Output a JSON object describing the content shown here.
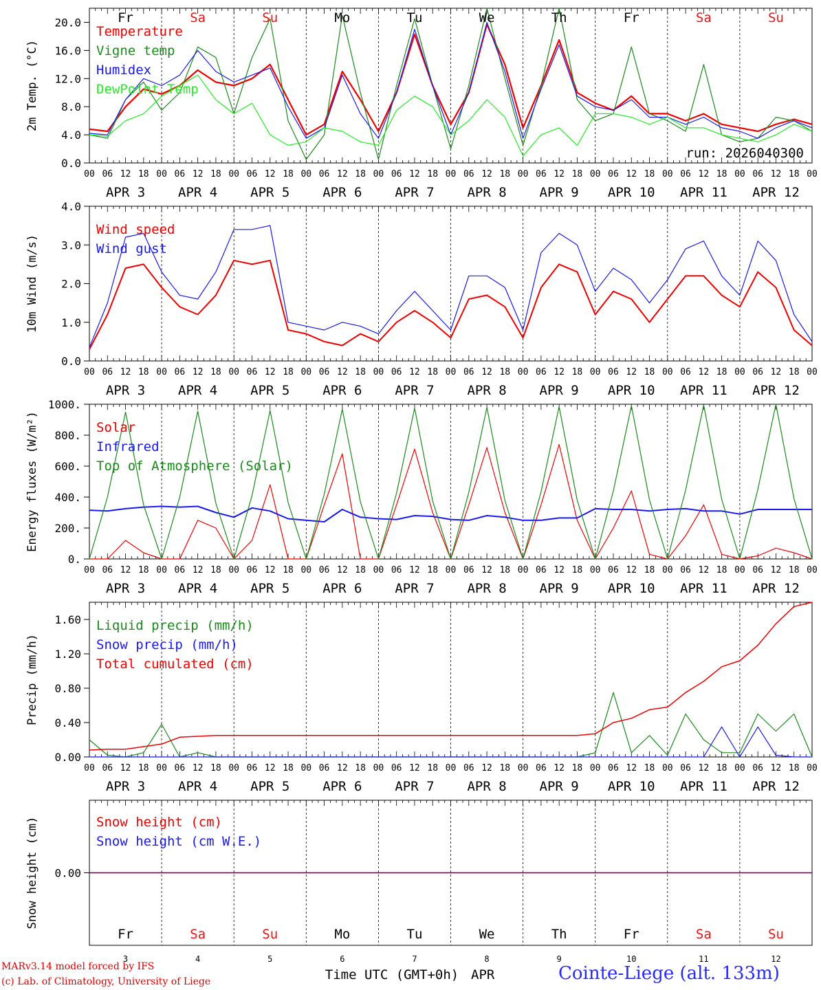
{
  "chart_data": {
    "type": "line",
    "station": "Cointe-Liege (alt. 133m)",
    "run_label": "run: 2026040300",
    "x_axis_title": "Time UTC (GMT+0h)",
    "x_month": "APR",
    "hour_ticks": [
      "00",
      "06",
      "12",
      "18"
    ],
    "final_tick": "00",
    "days": [
      {
        "num": "3",
        "label": "Fr",
        "weekend": false
      },
      {
        "num": "4",
        "label": "Sa",
        "weekend": true
      },
      {
        "num": "5",
        "label": "Su",
        "weekend": true
      },
      {
        "num": "6",
        "label": "Mo",
        "weekend": false
      },
      {
        "num": "7",
        "label": "Tu",
        "weekend": false
      },
      {
        "num": "8",
        "label": "We",
        "weekend": false
      },
      {
        "num": "9",
        "label": "Th",
        "weekend": false
      },
      {
        "num": "10",
        "label": "Fr",
        "weekend": false
      },
      {
        "num": "11",
        "label": "Sa",
        "weekend": true
      },
      {
        "num": "12",
        "label": "Su",
        "weekend": true
      }
    ],
    "x_hours": [
      0,
      6,
      12,
      18,
      24,
      30,
      36,
      42,
      48,
      54,
      60,
      66,
      72,
      78,
      84,
      90,
      96,
      102,
      108,
      114,
      120,
      126,
      132,
      138,
      144,
      150,
      156,
      162,
      168,
      174,
      180,
      186,
      192,
      198,
      204,
      210,
      216,
      222,
      228,
      234,
      240
    ],
    "panels": [
      {
        "ylabel": "2m Temp. (°C)",
        "ylim": [
          0,
          22
        ],
        "yticks": [
          "0.0",
          "4.0",
          "8.0",
          "12.0",
          "16.0",
          "20.0"
        ],
        "series": [
          {
            "name": "Temperature",
            "color": "#ee0000",
            "width": 2.2,
            "values": [
              4.8,
              4.5,
              8.0,
              10.5,
              9.8,
              11.0,
              13.2,
              11.5,
              11.0,
              12.0,
              14.0,
              9.0,
              4.0,
              5.5,
              13.0,
              9.0,
              4.5,
              10.0,
              18.3,
              11.0,
              5.5,
              10.0,
              19.7,
              14.0,
              5.0,
              11.0,
              17.5,
              10.0,
              8.5,
              7.5,
              9.5,
              7.0,
              7.0,
              6.0,
              7.0,
              5.5,
              5.0,
              4.5,
              5.5,
              6.2,
              5.5
            ]
          },
          {
            "name": "Vigne temp",
            "color": "#1a8a1a",
            "width": 1.2,
            "values": [
              4.0,
              3.5,
              9.0,
              11.5,
              7.5,
              10.0,
              16.5,
              15.0,
              7.0,
              15.0,
              20.5,
              6.0,
              0.5,
              4.0,
              21.0,
              10.0,
              0.5,
              11.0,
              20.5,
              11.0,
              2.0,
              11.0,
              22.0,
              12.0,
              2.5,
              11.0,
              22.0,
              9.0,
              6.0,
              7.0,
              16.5,
              7.0,
              6.0,
              4.5,
              14.0,
              4.0,
              3.0,
              3.5,
              6.5,
              6.0,
              4.5
            ]
          },
          {
            "name": "Humidex",
            "color": "#1818ee",
            "width": 1.2,
            "values": [
              4.2,
              4.0,
              9.0,
              12.0,
              11.0,
              12.5,
              16.0,
              13.0,
              11.5,
              12.5,
              13.5,
              8.0,
              3.5,
              5.0,
              12.5,
              7.0,
              3.5,
              10.0,
              19.0,
              11.0,
              4.0,
              10.0,
              20.0,
              13.0,
              3.5,
              10.5,
              16.8,
              9.5,
              8.0,
              7.5,
              9.0,
              6.5,
              6.5,
              5.5,
              6.5,
              5.0,
              4.5,
              3.5,
              5.0,
              6.0,
              5.0
            ]
          },
          {
            "name": "DewPoint Temp",
            "color": "#22ee22",
            "width": 1.2,
            "values": [
              4.0,
              3.8,
              6.0,
              7.0,
              9.5,
              11.0,
              12.5,
              9.0,
              7.0,
              8.5,
              4.0,
              2.5,
              3.0,
              5.0,
              4.5,
              3.0,
              2.5,
              7.5,
              9.5,
              8.0,
              4.0,
              6.0,
              9.0,
              6.5,
              1.0,
              4.0,
              5.0,
              2.5,
              7.0,
              7.0,
              6.5,
              5.5,
              6.5,
              5.0,
              5.0,
              4.0,
              3.5,
              3.0,
              4.0,
              5.5,
              4.5
            ]
          }
        ]
      },
      {
        "ylabel": "10m Wind (m/s)",
        "ylim": [
          0,
          4
        ],
        "yticks": [
          "0.0",
          "1.0",
          "2.0",
          "3.0",
          "4.0"
        ],
        "series": [
          {
            "name": "Wind speed",
            "color": "#ee0000",
            "width": 2.0,
            "values": [
              0.3,
              1.2,
              2.4,
              2.5,
              1.9,
              1.4,
              1.2,
              1.7,
              2.6,
              2.5,
              2.6,
              0.8,
              0.7,
              0.5,
              0.4,
              0.7,
              0.5,
              1.0,
              1.3,
              1.0,
              0.6,
              1.6,
              1.7,
              1.4,
              0.6,
              1.9,
              2.5,
              2.3,
              1.2,
              1.8,
              1.6,
              1.0,
              1.6,
              2.2,
              2.2,
              1.7,
              1.4,
              2.3,
              1.9,
              0.8,
              0.4
            ]
          },
          {
            "name": "Wind gust",
            "color": "#1818ee",
            "width": 1.2,
            "values": [
              0.35,
              1.5,
              3.2,
              3.3,
              2.3,
              1.7,
              1.6,
              2.3,
              3.4,
              3.4,
              3.5,
              1.0,
              0.9,
              0.8,
              1.0,
              0.9,
              0.7,
              1.3,
              1.8,
              1.3,
              0.8,
              2.2,
              2.2,
              1.9,
              0.8,
              2.8,
              3.3,
              3.0,
              1.8,
              2.4,
              2.1,
              1.5,
              2.1,
              2.9,
              3.1,
              2.2,
              1.7,
              3.1,
              2.6,
              1.2,
              0.5
            ]
          }
        ]
      },
      {
        "ylabel": "Energy fluxes (W/m²)",
        "ylim": [
          0,
          1000
        ],
        "yticks": [
          "0.",
          "200.",
          "400.",
          "600.",
          "800.",
          "1000."
        ],
        "series": [
          {
            "name": "Solar",
            "color": "#ee0000",
            "width": 1.2,
            "values": [
              0,
              0,
              120,
              40,
              0,
              0,
              250,
              200,
              0,
              120,
              480,
              0,
              0,
              350,
              680,
              0,
              0,
              350,
              710,
              300,
              0,
              350,
              720,
              300,
              0,
              350,
              740,
              250,
              0,
              200,
              440,
              30,
              0,
              150,
              350,
              30,
              0,
              20,
              70,
              40,
              0
            ]
          },
          {
            "name": "Infrared",
            "color": "#1818ee",
            "width": 2.0,
            "values": [
              315,
              310,
              325,
              335,
              340,
              335,
              340,
              300,
              270,
              330,
              310,
              260,
              250,
              240,
              320,
              270,
              260,
              255,
              280,
              275,
              255,
              250,
              280,
              270,
              250,
              250,
              265,
              265,
              325,
              320,
              320,
              310,
              320,
              325,
              310,
              310,
              290,
              320,
              320,
              320,
              320
            ]
          },
          {
            "name": "Top of Atmosphere (Solar)",
            "color": "#1a8a1a",
            "width": 1.2,
            "values": [
              0,
              400,
              950,
              350,
              0,
              400,
              955,
              360,
              0,
              410,
              960,
              365,
              0,
              420,
              968,
              370,
              0,
              425,
              975,
              375,
              0,
              430,
              980,
              378,
              0,
              435,
              985,
              380,
              0,
              440,
              990,
              382,
              0,
              445,
              995,
              385,
              0,
              450,
              1000,
              390,
              0
            ]
          }
        ]
      },
      {
        "ylabel": "Precip (mm/h)",
        "ylim": [
          0,
          1.8
        ],
        "yticks": [
          "0.00",
          "0.40",
          "0.80",
          "1.20",
          "1.60"
        ],
        "series": [
          {
            "name": "Liquid precip (mm/h)",
            "color": "#1a8a1a",
            "width": 1.2,
            "values": [
              0.2,
              0.02,
              0,
              0.05,
              0.38,
              0,
              0.05,
              0,
              0,
              0,
              0,
              0,
              0,
              0,
              0,
              0,
              0,
              0,
              0,
              0,
              0,
              0,
              0,
              0,
              0,
              0,
              0,
              0,
              0.05,
              0.75,
              0.05,
              0.25,
              0.02,
              0.5,
              0.2,
              0.05,
              0.05,
              0.5,
              0.3,
              0.5,
              0
            ]
          },
          {
            "name": "Snow precip (mm/h)",
            "color": "#1818ee",
            "width": 1.2,
            "values": [
              0,
              0,
              0,
              0,
              0,
              0,
              0,
              0,
              0,
              0,
              0,
              0,
              0,
              0,
              0,
              0,
              0,
              0,
              0,
              0,
              0,
              0,
              0,
              0,
              0,
              0,
              0,
              0,
              0,
              0,
              0,
              0,
              0,
              0,
              0,
              0.35,
              0,
              0.35,
              0.02,
              0,
              0
            ]
          },
          {
            "name": "Total cumulated (cm)",
            "color": "#ee0000",
            "width": 1.5,
            "values": [
              0.08,
              0.09,
              0.09,
              0.12,
              0.15,
              0.23,
              0.24,
              0.25,
              0.25,
              0.25,
              0.25,
              0.25,
              0.25,
              0.25,
              0.25,
              0.25,
              0.25,
              0.25,
              0.25,
              0.25,
              0.25,
              0.25,
              0.25,
              0.25,
              0.25,
              0.25,
              0.25,
              0.25,
              0.27,
              0.4,
              0.45,
              0.55,
              0.58,
              0.75,
              0.88,
              1.05,
              1.12,
              1.3,
              1.55,
              1.75,
              1.8
            ]
          }
        ]
      },
      {
        "ylabel": "Snow height (cm)",
        "ylim": [
          -1,
          1
        ],
        "yticks": [
          "0.00"
        ],
        "series": [
          {
            "name": "Snow height (cm)",
            "color": "#ee0000",
            "width": 1.5,
            "values": [
              0,
              0,
              0,
              0,
              0,
              0,
              0,
              0,
              0,
              0,
              0,
              0,
              0,
              0,
              0,
              0,
              0,
              0,
              0,
              0,
              0,
              0,
              0,
              0,
              0,
              0,
              0,
              0,
              0,
              0,
              0,
              0,
              0,
              0,
              0,
              0,
              0,
              0,
              0,
              0,
              0
            ]
          },
          {
            "name": "Snow height (cm W.E.)",
            "color": "#1818ee",
            "width": 1.2,
            "values": [
              0,
              0,
              0,
              0,
              0,
              0,
              0,
              0,
              0,
              0,
              0,
              0,
              0,
              0,
              0,
              0,
              0,
              0,
              0,
              0,
              0,
              0,
              0,
              0,
              0,
              0,
              0,
              0,
              0,
              0,
              0,
              0,
              0,
              0,
              0,
              0,
              0,
              0,
              0,
              0,
              0
            ]
          }
        ]
      }
    ]
  },
  "footer": {
    "credit_model": "MARv3.14 model forced by IFS",
    "credit_lab": "(c) Lab. of Climatology, University of Liege"
  },
  "colors": {
    "weekday": "#000000",
    "weekend": "#ee1111",
    "station": "#2828ff"
  }
}
